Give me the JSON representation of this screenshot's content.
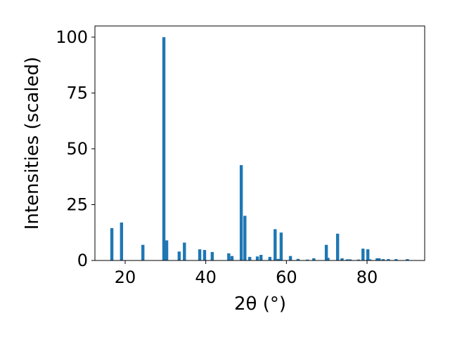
{
  "chart_data": {
    "type": "bar",
    "xlabel": "2θ (°)",
    "ylabel": "Intensities (scaled)",
    "color": "#1f77b4",
    "x": [
      16.7,
      19.1,
      24.4,
      29.6,
      30.3,
      33.4,
      34.7,
      38.5,
      39.7,
      41.6,
      45.7,
      46.5,
      48.8,
      49.7,
      50.9,
      52.8,
      53.7,
      55.9,
      57.2,
      58.0,
      58.7,
      61.0,
      62.9,
      65.2,
      66.8,
      69.9,
      70.3,
      72.7,
      73.8,
      75.1,
      75.8,
      77.9,
      79.0,
      80.2,
      80.7,
      82.5,
      83.0,
      84.0,
      85.3,
      87.2,
      90.0
    ],
    "values": [
      14.5,
      17,
      7,
      100,
      9,
      4,
      8,
      5,
      4.7,
      3.8,
      3.2,
      2,
      42.7,
      20,
      1.6,
      1.8,
      2.5,
      1.6,
      14,
      0.7,
      12.5,
      2,
      0.7,
      0.4,
      1,
      7,
      1.2,
      12,
      1,
      0.5,
      0.5,
      0.4,
      5.3,
      5,
      0.5,
      1,
      1,
      0.6,
      0.6,
      0.6,
      0.6
    ],
    "xlim": [
      12.5,
      94.3
    ],
    "ylim": [
      0,
      105
    ],
    "xticks": [
      20,
      40,
      60,
      80
    ],
    "yticks": [
      0,
      25,
      50,
      75,
      100
    ]
  }
}
